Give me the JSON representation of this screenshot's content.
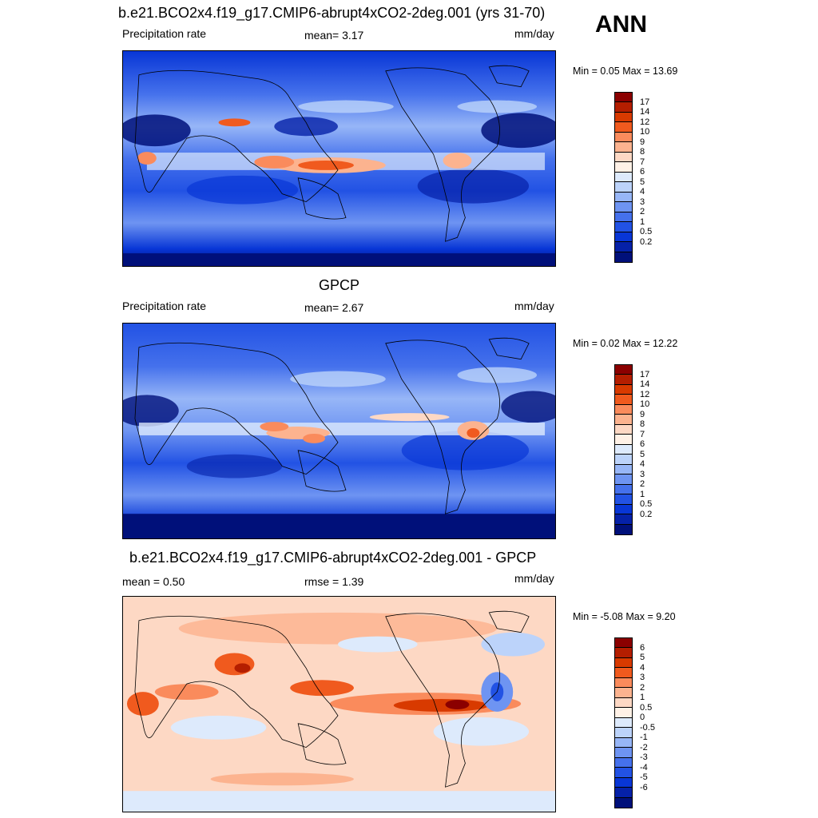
{
  "season": "ANN",
  "panels": [
    {
      "title": "b.e21.BCO2x4.f19_g17.CMIP6-abrupt4xCO2-2deg.001 (yrs 31-70)",
      "left_label": "Precipitation rate",
      "center_label": "mean=   3.17",
      "right_label": "mm/day",
      "minmax": "Min =   0.05 Max =  13.69",
      "colorbar": {
        "colors": [
          "#8b0000",
          "#b41e00",
          "#d83a00",
          "#f05a1e",
          "#fa8b5c",
          "#fcb38f",
          "#fdd8c4",
          "#fff1e6",
          "#ddeafc",
          "#bcd3fa",
          "#97b6f7",
          "#6e94f2",
          "#4571ec",
          "#2252e4",
          "#0836d6",
          "#0521a8",
          "#00107a"
        ],
        "labels": [
          "17",
          "14",
          "12",
          "10",
          "9",
          "8",
          "7",
          "6",
          "5",
          "4",
          "3",
          "2",
          "1",
          "0.5",
          "0.2"
        ]
      }
    },
    {
      "title": "GPCP",
      "left_label": "Precipitation rate",
      "center_label": "mean=   2.67",
      "right_label": "mm/day",
      "minmax": "Min =   0.02 Max =  12.22",
      "colorbar": {
        "colors": [
          "#8b0000",
          "#b41e00",
          "#d83a00",
          "#f05a1e",
          "#fa8b5c",
          "#fcb38f",
          "#fdd8c4",
          "#fff1e6",
          "#ddeafc",
          "#bcd3fa",
          "#97b6f7",
          "#6e94f2",
          "#4571ec",
          "#2252e4",
          "#0836d6",
          "#0521a8",
          "#00107a"
        ],
        "labels": [
          "17",
          "14",
          "12",
          "10",
          "9",
          "8",
          "7",
          "6",
          "5",
          "4",
          "3",
          "2",
          "1",
          "0.5",
          "0.2"
        ]
      }
    },
    {
      "title": "b.e21.BCO2x4.f19_g17.CMIP6-abrupt4xCO2-2deg.001 - GPCP",
      "left_label": "mean =   0.50",
      "center_label": "rmse =   1.39",
      "right_label": "mm/day",
      "minmax": "Min =  -5.08 Max =   9.20",
      "colorbar": {
        "colors": [
          "#8b0000",
          "#b41e00",
          "#d83a00",
          "#f05a1e",
          "#fa8b5c",
          "#fcb38f",
          "#fdd8c4",
          "#fff1e6",
          "#ddeafc",
          "#bcd3fa",
          "#97b6f7",
          "#6e94f2",
          "#4571ec",
          "#2252e4",
          "#0836d6",
          "#0521a8",
          "#00107a"
        ],
        "labels": [
          "6",
          "5",
          "4",
          "3",
          "2",
          "1",
          "0.5",
          "0",
          "-0.5",
          "-1",
          "-2",
          "-3",
          "-4",
          "-5",
          "-6"
        ]
      }
    }
  ]
}
